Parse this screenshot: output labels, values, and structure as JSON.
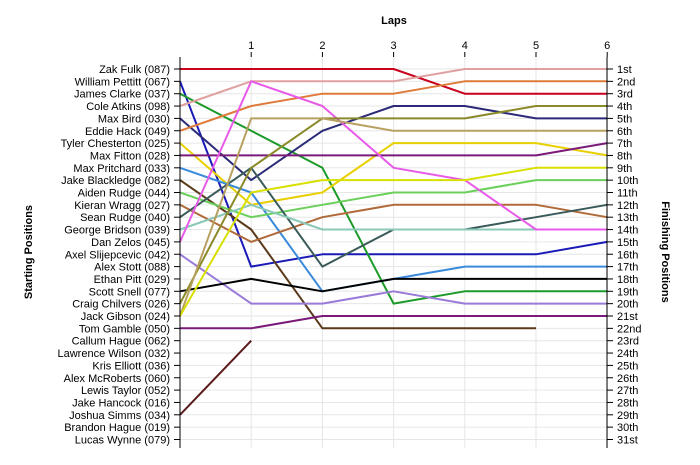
{
  "chart_data": {
    "type": "line",
    "title": "",
    "xlabel": "Laps",
    "ylabel": "Starting Positions",
    "y2label": "Finishing Positions",
    "x": [
      0,
      1,
      2,
      3,
      4,
      5,
      6
    ],
    "x_tick_labels": [
      "1",
      "2",
      "3",
      "4",
      "5",
      "6"
    ],
    "ylim": [
      1,
      31
    ],
    "y_inverted": true,
    "grid": true,
    "starting_positions": [
      "Zak Fulk (087)",
      "William Pettitt (067)",
      "James Clarke (037)",
      "Cole Atkins (098)",
      "Max Bird (030)",
      "Eddie Hack (049)",
      "Tyler Chesterton (025)",
      "Max Fitton (028)",
      "Max Pritchard (033)",
      "Jake Blackledge (082)",
      "Aiden Rudge (044)",
      "Kieran Wragg (027)",
      "Sean Rudge (040)",
      "George Bridson (039)",
      "Dan Zelos (045)",
      "Axel Slijepcevic (042)",
      "Alex Stott (088)",
      "Ethan Pitt (029)",
      "Scott Snell (077)",
      "Craig Chilvers (026)",
      "Jack Gibson (024)",
      "Tom Gamble (050)",
      "Callum Hague (062)",
      "Lawrence Wilson (032)",
      "Kris Elliott (036)",
      "Alex McRoberts (060)",
      "Lewis Taylor (052)",
      "Jake Hancock (016)",
      "Joshua Simms (034)",
      "Brandon Hague (019)",
      "Lucas Wynne (079)"
    ],
    "finishing_positions": [
      "1st",
      "2nd",
      "3rd",
      "4th",
      "5th",
      "6th",
      "7th",
      "8th",
      "9th",
      "10th",
      "11th",
      "12th",
      "13th",
      "14th",
      "15th",
      "16th",
      "17th",
      "18th",
      "19th",
      "20th",
      "21st",
      "22nd",
      "23rd",
      "24th",
      "25th",
      "26th",
      "27th",
      "28th",
      "29th",
      "30th",
      "31st"
    ],
    "series": [
      {
        "color": "#c8001e",
        "values": [
          1,
          1,
          1,
          1,
          3,
          3,
          3
        ]
      },
      {
        "color": "#1a1ab8",
        "values": [
          2,
          17,
          16,
          16,
          16,
          16,
          15
        ]
      },
      {
        "color": "#1c9a2a",
        "values": [
          3,
          6,
          9,
          20,
          19,
          19,
          19
        ]
      },
      {
        "color": "#e0a0a0",
        "values": [
          4,
          2,
          2,
          2,
          1,
          1,
          1
        ]
      },
      {
        "color": "#2a2a78",
        "values": [
          5,
          10,
          6,
          4,
          4,
          5,
          5
        ]
      },
      {
        "color": "#e07a3a",
        "values": [
          6,
          4,
          3,
          3,
          2,
          2,
          2
        ]
      },
      {
        "color": "#e8d000",
        "values": [
          7,
          12,
          11,
          7,
          7,
          7,
          8
        ]
      },
      {
        "color": "#7a1a7a",
        "values": [
          8,
          8,
          8,
          8,
          8,
          8,
          7
        ]
      },
      {
        "color": "#3a8adc",
        "values": [
          9,
          11,
          19,
          18,
          17,
          17,
          17
        ]
      },
      {
        "color": "#5a3a1a",
        "values": [
          10,
          14,
          22,
          22,
          22,
          22,
          null
        ]
      },
      {
        "color": "#6ad05a",
        "values": [
          11,
          13,
          12,
          11,
          11,
          10,
          10
        ]
      },
      {
        "color": "#b06a3a",
        "values": [
          12,
          15,
          13,
          12,
          12,
          12,
          13
        ]
      },
      {
        "color": "#3a5a5a",
        "values": [
          13,
          9,
          17,
          14,
          14,
          13,
          12
        ]
      },
      {
        "color": "#8ac8b8",
        "values": [
          14,
          12,
          14,
          14,
          14,
          14,
          14
        ]
      },
      {
        "color": "#e85ae8",
        "values": [
          15,
          2,
          4,
          9,
          10,
          14,
          14
        ]
      },
      {
        "color": "#9a7ad8",
        "values": [
          16,
          20,
          20,
          19,
          20,
          20,
          20
        ]
      },
      {
        "color": "#7a1a7a",
        "values": [
          22,
          22,
          21,
          21,
          21,
          21,
          21
        ]
      },
      {
        "color": "#000000",
        "values": [
          19,
          18,
          19,
          18,
          18,
          18,
          18
        ]
      },
      {
        "color": "#8a8a2a",
        "values": [
          20,
          9,
          5,
          5,
          5,
          4,
          4
        ]
      },
      {
        "color": "#b8a060",
        "values": [
          21,
          5,
          5,
          6,
          6,
          6,
          6
        ]
      },
      {
        "color": "#d8e000",
        "values": [
          21,
          11,
          10,
          10,
          10,
          9,
          9
        ]
      },
      {
        "color": "#5a1a1a",
        "values": [
          29,
          23,
          null,
          null,
          null,
          null,
          null
        ]
      }
    ]
  }
}
